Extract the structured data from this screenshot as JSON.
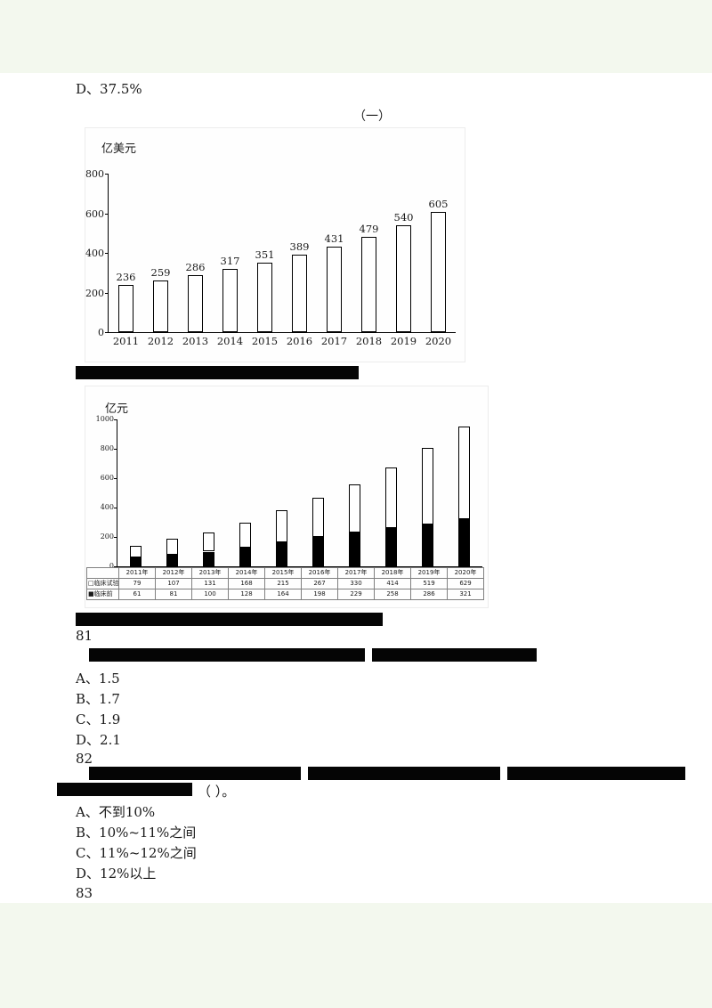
{
  "document": {
    "prev_question_option": "D、37.5%",
    "section_label": "（一）",
    "questions": {
      "q81": {
        "number": "81",
        "options": [
          "A、1.5",
          "B、1.7",
          "C、1.9",
          "D、2.1"
        ]
      },
      "q82": {
        "number": "82",
        "stem_visible_tail": "（ ）。",
        "options": [
          "A、不到10%",
          "B、10%~11%之间",
          "C、11%~12%之间",
          "D、12%以上"
        ]
      },
      "q83": {
        "number": "83"
      }
    }
  },
  "chart_data": [
    {
      "type": "bar",
      "unit_label": "亿美元",
      "categories": [
        "2011",
        "2012",
        "2013",
        "2014",
        "2015",
        "2016",
        "2017",
        "2018",
        "2019",
        "2020"
      ],
      "values": [
        236,
        259,
        286,
        317,
        351,
        389,
        431,
        479,
        540,
        605
      ],
      "ylim": [
        0,
        800
      ],
      "yticks": [
        0,
        200,
        400,
        600,
        800
      ],
      "bar_fill": "#ffffff",
      "data_labels": true,
      "grid": false,
      "legend": "none"
    },
    {
      "type": "stacked-bar",
      "unit_label": "亿元",
      "categories": [
        "2011年",
        "2012年",
        "2013年",
        "2014年",
        "2015年",
        "2016年",
        "2017年",
        "2018年",
        "2019年",
        "2020年"
      ],
      "series": [
        {
          "name": "临床试验",
          "marker": "□",
          "color": "#ffffff",
          "values": [
            79,
            107,
            131,
            168,
            215,
            267,
            330,
            414,
            519,
            629
          ]
        },
        {
          "name": "临床前",
          "marker": "■",
          "color": "#000000",
          "values": [
            61,
            81,
            100,
            128,
            164,
            198,
            229,
            258,
            286,
            321
          ]
        }
      ],
      "stack_order_bottom_to_top": [
        "临床前",
        "临床试验"
      ],
      "ylim": [
        0,
        1000
      ],
      "yticks": [
        0,
        200,
        400,
        600,
        800,
        1000
      ],
      "value_table": true,
      "grid": false
    }
  ]
}
